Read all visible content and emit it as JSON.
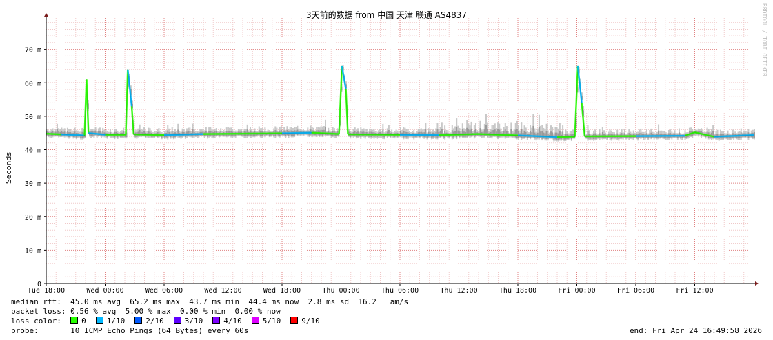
{
  "chart_data": {
    "type": "line",
    "title": "3天前的数据 from 中国 天津 联通 AS4837",
    "ylabel": "Seconds",
    "ylim": [
      0,
      80
    ],
    "y_ticks": [
      {
        "value": 0,
        "label": "0"
      },
      {
        "value": 10,
        "label": "10 m"
      },
      {
        "value": 20,
        "label": "20 m"
      },
      {
        "value": 30,
        "label": "30 m"
      },
      {
        "value": 40,
        "label": "40 m"
      },
      {
        "value": 50,
        "label": "50 m"
      },
      {
        "value": 60,
        "label": "60 m"
      },
      {
        "value": 70,
        "label": "70 m"
      }
    ],
    "x_unit": "hours since start of axis",
    "xlim": [
      0,
      72
    ],
    "x_ticks": [
      {
        "value": 0,
        "label": "Tue 18:00"
      },
      {
        "value": 6,
        "label": "Wed 00:00"
      },
      {
        "value": 12,
        "label": "Wed 06:00"
      },
      {
        "value": 18,
        "label": "Wed 12:00"
      },
      {
        "value": 24,
        "label": "Wed 18:00"
      },
      {
        "value": 30,
        "label": "Thu 00:00"
      },
      {
        "value": 36,
        "label": "Thu 06:00"
      },
      {
        "value": 42,
        "label": "Thu 12:00"
      },
      {
        "value": 48,
        "label": "Thu 18:00"
      },
      {
        "value": 54,
        "label": "Fri 00:00"
      },
      {
        "value": 60,
        "label": "Fri 06:00"
      },
      {
        "value": 66,
        "label": "Fri 12:00"
      }
    ],
    "grid": true,
    "series": [
      {
        "name": "median rtt",
        "points": [
          [
            0,
            44.8
          ],
          [
            1.5,
            44.6
          ],
          [
            3.9,
            44.3
          ],
          [
            4.1,
            61
          ],
          [
            4.3,
            45
          ],
          [
            6,
            44.5
          ],
          [
            8.1,
            44.5
          ],
          [
            8.3,
            64
          ],
          [
            8.7,
            53
          ],
          [
            8.9,
            44.6
          ],
          [
            12,
            44.4
          ],
          [
            16,
            44.7
          ],
          [
            20,
            44.8
          ],
          [
            24,
            44.9
          ],
          [
            27,
            45.1
          ],
          [
            29.8,
            44.7
          ],
          [
            30.1,
            65
          ],
          [
            30.5,
            58
          ],
          [
            30.7,
            44.6
          ],
          [
            36,
            44.5
          ],
          [
            40,
            44.4
          ],
          [
            44,
            44.7
          ],
          [
            48,
            44.3
          ],
          [
            52,
            43.8
          ],
          [
            53.8,
            43.9
          ],
          [
            54.1,
            65
          ],
          [
            54.5,
            54
          ],
          [
            54.8,
            44
          ],
          [
            60,
            44.1
          ],
          [
            65,
            44.2
          ],
          [
            66,
            45.2
          ],
          [
            68,
            43.9
          ],
          [
            72,
            44.4
          ]
        ]
      }
    ]
  },
  "legend": {
    "median_label": "median rtt:",
    "median_values": "45.0 ms avg  65.2 ms max  43.7 ms min  44.4 ms now  2.8 ms sd  16.2   am/s",
    "loss_label": "packet loss:",
    "loss_values": "0.56 % avg  5.00 % max  0.00 % min  0.00 % now",
    "color_label": "loss color:",
    "loss_colors": [
      {
        "label": "0",
        "color": "#26ff00"
      },
      {
        "label": "1/10",
        "color": "#00b8ff"
      },
      {
        "label": "2/10",
        "color": "#0059ff"
      },
      {
        "label": "3/10",
        "color": "#5e00ff"
      },
      {
        "label": "4/10",
        "color": "#7e00ff"
      },
      {
        "label": "5/10",
        "color": "#dd00ff"
      },
      {
        "label": "9/10",
        "color": "#ff0000"
      }
    ],
    "probe_label": "probe:",
    "probe_value": "10 ICMP Echo Pings (64 Bytes) every 60s",
    "end_text": "end: Fri Apr 24 16:49:58 2026"
  },
  "watermark": "RRDTOOL / TOBI OETIKER"
}
